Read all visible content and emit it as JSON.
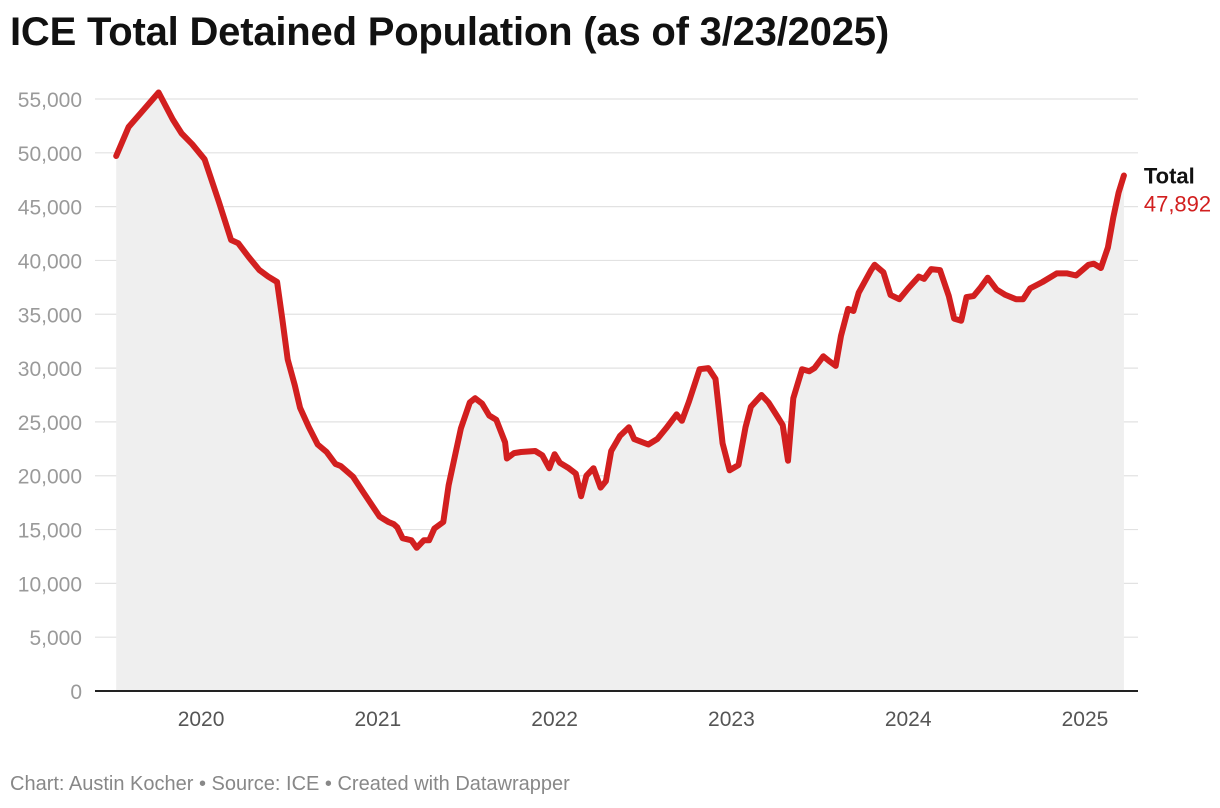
{
  "colors": {
    "line": "#d21f1f",
    "area": "#efefef",
    "grid": "#e2e2e2",
    "axis": "#222222"
  },
  "chart_data": {
    "type": "area",
    "title": "ICE Total Detained Population (as of 3/23/2025)",
    "footer": "Chart: Austin Kocher • Source: ICE • Created with Datawrapper",
    "ylim": [
      0,
      55000
    ],
    "yticks": [
      {
        "value": 55000,
        "label": "55,000"
      },
      {
        "value": 50000,
        "label": "50,000"
      },
      {
        "value": 45000,
        "label": "45,000"
      },
      {
        "value": 40000,
        "label": "40,000"
      },
      {
        "value": 35000,
        "label": "35,000"
      },
      {
        "value": 30000,
        "label": "30,000"
      },
      {
        "value": 25000,
        "label": "25,000"
      },
      {
        "value": 20000,
        "label": "20,000"
      },
      {
        "value": 15000,
        "label": "15,000"
      },
      {
        "value": 10000,
        "label": "10,000"
      },
      {
        "value": 5000,
        "label": "5,000"
      },
      {
        "value": 0,
        "label": "0"
      }
    ],
    "xlim": [
      2019.4,
      2025.3
    ],
    "xticks": [
      {
        "value": 2020,
        "label": "2020"
      },
      {
        "value": 2021,
        "label": "2021"
      },
      {
        "value": 2022,
        "label": "2022"
      },
      {
        "value": 2023,
        "label": "2023"
      },
      {
        "value": 2024,
        "label": "2024"
      },
      {
        "value": 2025,
        "label": "2025"
      }
    ],
    "series": [
      {
        "name": "Total",
        "end_label": "Total",
        "end_value_label": "47,892",
        "points": [
          [
            2019.52,
            49700
          ],
          [
            2019.59,
            52400
          ],
          [
            2019.67,
            53900
          ],
          [
            2019.76,
            55600
          ],
          [
            2019.84,
            53100
          ],
          [
            2019.89,
            51800
          ],
          [
            2019.95,
            50800
          ],
          [
            2020.02,
            49400
          ],
          [
            2020.1,
            45500
          ],
          [
            2020.17,
            41900
          ],
          [
            2020.21,
            41600
          ],
          [
            2020.27,
            40300
          ],
          [
            2020.33,
            39100
          ],
          [
            2020.38,
            38500
          ],
          [
            2020.43,
            38000
          ],
          [
            2020.46,
            34500
          ],
          [
            2020.49,
            30800
          ],
          [
            2020.53,
            28400
          ],
          [
            2020.56,
            26300
          ],
          [
            2020.61,
            24500
          ],
          [
            2020.66,
            22900
          ],
          [
            2020.71,
            22200
          ],
          [
            2020.76,
            21100
          ],
          [
            2020.79,
            20900
          ],
          [
            2020.86,
            19900
          ],
          [
            2020.92,
            18400
          ],
          [
            2021.01,
            16200
          ],
          [
            2021.06,
            15700
          ],
          [
            2021.09,
            15500
          ],
          [
            2021.11,
            15200
          ],
          [
            2021.14,
            14200
          ],
          [
            2021.19,
            14000
          ],
          [
            2021.22,
            13300
          ],
          [
            2021.26,
            14000
          ],
          [
            2021.29,
            14000
          ],
          [
            2021.32,
            15100
          ],
          [
            2021.37,
            15700
          ],
          [
            2021.4,
            19100
          ],
          [
            2021.43,
            21400
          ],
          [
            2021.47,
            24400
          ],
          [
            2021.52,
            26800
          ],
          [
            2021.55,
            27200
          ],
          [
            2021.59,
            26700
          ],
          [
            2021.63,
            25600
          ],
          [
            2021.67,
            25200
          ],
          [
            2021.72,
            23100
          ],
          [
            2021.73,
            21600
          ],
          [
            2021.77,
            22100
          ],
          [
            2021.81,
            22200
          ],
          [
            2021.89,
            22300
          ],
          [
            2021.93,
            21900
          ],
          [
            2021.97,
            20700
          ],
          [
            2022.0,
            22000
          ],
          [
            2022.03,
            21200
          ],
          [
            2022.08,
            20700
          ],
          [
            2022.12,
            20200
          ],
          [
            2022.15,
            18100
          ],
          [
            2022.18,
            20000
          ],
          [
            2022.22,
            20700
          ],
          [
            2022.26,
            18900
          ],
          [
            2022.29,
            19500
          ],
          [
            2022.32,
            22300
          ],
          [
            2022.37,
            23700
          ],
          [
            2022.42,
            24500
          ],
          [
            2022.45,
            23400
          ],
          [
            2022.53,
            22900
          ],
          [
            2022.58,
            23400
          ],
          [
            2022.63,
            24400
          ],
          [
            2022.69,
            25700
          ],
          [
            2022.72,
            25100
          ],
          [
            2022.76,
            26900
          ],
          [
            2022.82,
            29900
          ],
          [
            2022.87,
            30000
          ],
          [
            2022.91,
            29000
          ],
          [
            2022.95,
            23000
          ],
          [
            2022.99,
            20500
          ],
          [
            2023.04,
            21000
          ],
          [
            2023.08,
            24500
          ],
          [
            2023.11,
            26400
          ],
          [
            2023.17,
            27500
          ],
          [
            2023.21,
            26800
          ],
          [
            2023.26,
            25500
          ],
          [
            2023.29,
            24700
          ],
          [
            2023.32,
            21400
          ],
          [
            2023.35,
            27200
          ],
          [
            2023.4,
            29900
          ],
          [
            2023.44,
            29700
          ],
          [
            2023.47,
            30000
          ],
          [
            2023.52,
            31100
          ],
          [
            2023.55,
            30700
          ],
          [
            2023.59,
            30200
          ],
          [
            2023.62,
            33000
          ],
          [
            2023.66,
            35500
          ],
          [
            2023.69,
            35300
          ],
          [
            2023.72,
            37000
          ],
          [
            2023.79,
            39100
          ],
          [
            2023.81,
            39600
          ],
          [
            2023.86,
            38900
          ],
          [
            2023.9,
            36800
          ],
          [
            2023.95,
            36400
          ],
          [
            2024.0,
            37400
          ],
          [
            2024.06,
            38500
          ],
          [
            2024.09,
            38300
          ],
          [
            2024.13,
            39200
          ],
          [
            2024.18,
            39100
          ],
          [
            2024.23,
            36700
          ],
          [
            2024.26,
            34600
          ],
          [
            2024.3,
            34400
          ],
          [
            2024.33,
            36600
          ],
          [
            2024.37,
            36700
          ],
          [
            2024.41,
            37500
          ],
          [
            2024.45,
            38400
          ],
          [
            2024.5,
            37300
          ],
          [
            2024.55,
            36800
          ],
          [
            2024.61,
            36400
          ],
          [
            2024.65,
            36400
          ],
          [
            2024.69,
            37400
          ],
          [
            2024.76,
            38000
          ],
          [
            2024.84,
            38800
          ],
          [
            2024.9,
            38800
          ],
          [
            2024.95,
            38600
          ],
          [
            2025.02,
            39600
          ],
          [
            2025.05,
            39700
          ],
          [
            2025.09,
            39300
          ],
          [
            2025.13,
            41200
          ],
          [
            2025.16,
            44000
          ],
          [
            2025.19,
            46300
          ],
          [
            2025.22,
            47892
          ]
        ]
      }
    ]
  }
}
